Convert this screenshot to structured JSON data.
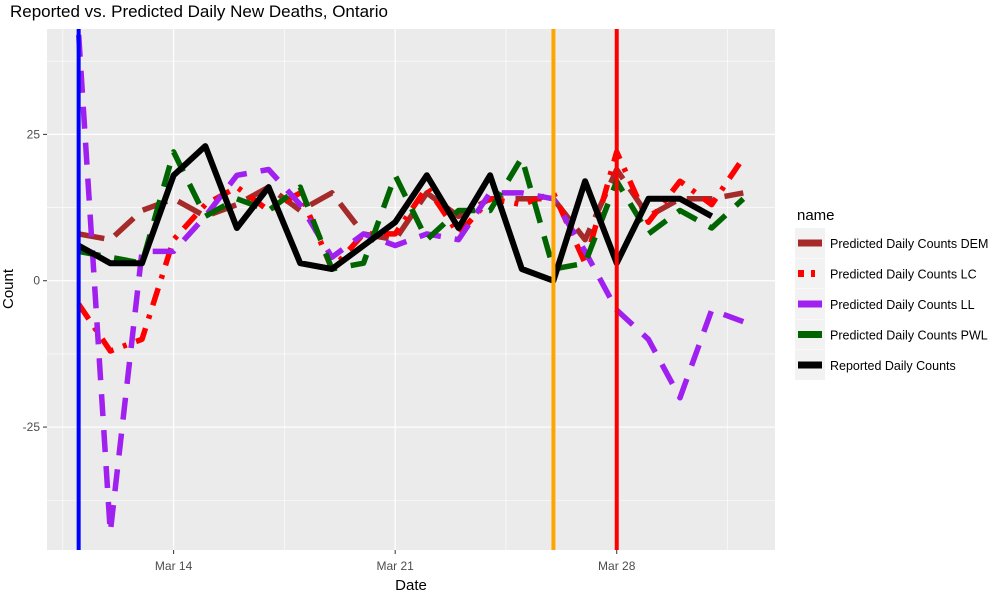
{
  "chart_data": {
    "type": "line",
    "title": "Reported vs. Predicted Daily New Deaths, Ontario",
    "xlabel": "Date",
    "ylabel": "Count",
    "x_start_date": "2020-03-11",
    "x": [
      "Mar 11",
      "Mar 12",
      "Mar 13",
      "Mar 14",
      "Mar 15",
      "Mar 16",
      "Mar 17",
      "Mar 18",
      "Mar 19",
      "Mar 20",
      "Mar 21",
      "Mar 22",
      "Mar 23",
      "Mar 24",
      "Mar 25",
      "Mar 26",
      "Mar 27",
      "Mar 28",
      "Mar 29",
      "Mar 30",
      "Mar 31",
      "Apr 1"
    ],
    "x_ticks": [
      "Mar 14",
      "Mar 21",
      "Mar 28"
    ],
    "xlim": [
      "2020-03-10",
      "2020-04-02"
    ],
    "y_ticks": [
      -25,
      0,
      25
    ],
    "ylim": [
      -46,
      43
    ],
    "grid": true,
    "legend_title": "name",
    "legend_position": "right",
    "series": [
      {
        "name": "Predicted Daily Counts DEM",
        "color": "#a52a2a",
        "dash": "long-dash",
        "values": [
          8,
          7,
          12,
          14,
          11,
          13,
          16,
          12,
          15,
          8,
          7,
          15,
          11,
          14,
          14,
          14,
          7,
          19,
          11,
          14,
          14,
          15
        ]
      },
      {
        "name": "Predicted Daily Counts LC",
        "color": "#ff0000",
        "dash": "dash-dot",
        "values": [
          -4,
          -12,
          -10,
          7,
          13,
          16,
          12,
          15,
          2,
          8,
          8,
          16,
          8,
          14,
          13,
          15,
          3,
          22,
          10,
          17,
          13,
          21
        ]
      },
      {
        "name": "Predicted Daily Counts LL",
        "color": "#a020f0",
        "dash": "dash",
        "values": [
          42,
          -43,
          5,
          5,
          11,
          18,
          19,
          13,
          4,
          8,
          6,
          8,
          7,
          15,
          15,
          14,
          5,
          -5,
          -10,
          -20,
          -5,
          -7
        ]
      },
      {
        "name": "Predicted Daily Counts PWL",
        "color": "#006400",
        "dash": "dash",
        "values": [
          5,
          4,
          3,
          22,
          11,
          14,
          12,
          16,
          2,
          3,
          18,
          7,
          12,
          12,
          21,
          2,
          3,
          17,
          8,
          12,
          9,
          14
        ]
      },
      {
        "name": "Reported Daily Counts",
        "color": "#000000",
        "dash": "solid",
        "values": [
          6,
          3,
          3,
          18,
          23,
          9,
          16,
          3,
          2,
          6,
          10,
          18,
          9,
          18,
          2,
          0,
          17,
          3,
          14,
          14,
          11,
          null
        ]
      }
    ],
    "vertical_lines": [
      {
        "date": "2020-03-11",
        "color": "#0000ff"
      },
      {
        "date": "2020-03-26",
        "color": "#ffa500"
      },
      {
        "date": "2020-03-28",
        "color": "#ff0000"
      }
    ]
  }
}
